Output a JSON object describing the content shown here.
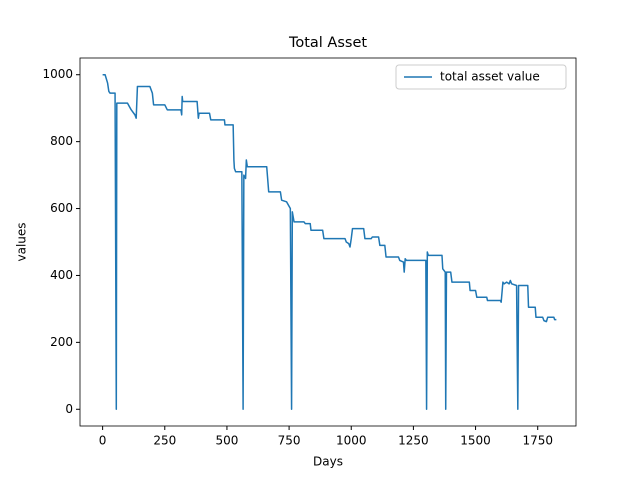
{
  "chart_data": {
    "type": "line",
    "title": "Total Asset",
    "xlabel": "Days",
    "ylabel": "values",
    "x": [
      0,
      10,
      20,
      25,
      30,
      50,
      55,
      57,
      100,
      115,
      130,
      135,
      140,
      190,
      200,
      205,
      250,
      260,
      315,
      318,
      320,
      322,
      380,
      385,
      388,
      430,
      435,
      490,
      492,
      525,
      528,
      530,
      535,
      560,
      565,
      568,
      575,
      578,
      582,
      660,
      668,
      715,
      720,
      740,
      755,
      760,
      763,
      770,
      810,
      815,
      835,
      838,
      885,
      890,
      975,
      980,
      990,
      995,
      1000,
      1005,
      1050,
      1055,
      1080,
      1085,
      1110,
      1115,
      1135,
      1140,
      1190,
      1195,
      1210,
      1213,
      1217,
      1222,
      1300,
      1303,
      1306,
      1310,
      1365,
      1368,
      1378,
      1380,
      1383,
      1400,
      1405,
      1475,
      1478,
      1500,
      1505,
      1545,
      1548,
      1600,
      1603,
      1610,
      1615,
      1625,
      1635,
      1640,
      1645,
      1665,
      1670,
      1673,
      1710,
      1713,
      1740,
      1743,
      1770,
      1775,
      1785,
      1790,
      1815,
      1818,
      1825
    ],
    "series": [
      {
        "name": "total asset value",
        "color": "#1f77b4",
        "values": [
          1000,
          1000,
          975,
          950,
          945,
          945,
          0,
          915,
          915,
          895,
          880,
          870,
          965,
          965,
          945,
          910,
          910,
          895,
          895,
          880,
          935,
          920,
          920,
          870,
          885,
          885,
          865,
          865,
          850,
          850,
          745,
          720,
          710,
          710,
          0,
          700,
          690,
          745,
          725,
          725,
          650,
          650,
          625,
          620,
          600,
          0,
          590,
          560,
          560,
          555,
          555,
          535,
          535,
          510,
          510,
          500,
          495,
          485,
          510,
          540,
          540,
          510,
          510,
          515,
          515,
          490,
          490,
          455,
          455,
          445,
          440,
          410,
          450,
          445,
          445,
          0,
          470,
          460,
          460,
          420,
          410,
          0,
          410,
          410,
          380,
          380,
          355,
          355,
          335,
          335,
          325,
          325,
          320,
          380,
          375,
          380,
          375,
          385,
          375,
          370,
          0,
          370,
          370,
          305,
          305,
          275,
          275,
          265,
          262,
          275,
          275,
          268,
          268
        ]
      }
    ],
    "xlim": [
      -91,
      1904
    ],
    "ylim": [
      -50,
      1050
    ],
    "xticks": [
      0,
      250,
      500,
      750,
      1000,
      1250,
      1500,
      1750
    ],
    "yticks": [
      0,
      200,
      400,
      600,
      800,
      1000
    ],
    "legend": "upper right",
    "grid": false
  }
}
